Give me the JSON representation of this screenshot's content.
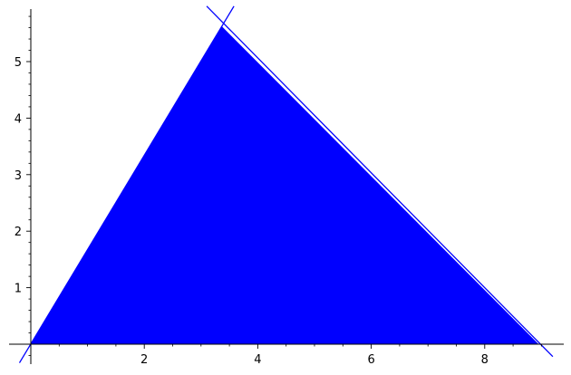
{
  "chart_data": {
    "type": "area",
    "title": "",
    "xlabel": "",
    "ylabel": "",
    "xlim": [
      0,
      9.4
    ],
    "ylim": [
      -0.45,
      5.9
    ],
    "grid": false,
    "x_major_ticks": [
      2,
      4,
      6,
      8
    ],
    "x_tick_labels": [
      "2",
      "4",
      "6",
      "8"
    ],
    "y_major_ticks": [
      1,
      2,
      3,
      4,
      5
    ],
    "y_tick_labels": [
      "1",
      "2",
      "3",
      "4",
      "5"
    ],
    "x_minor_step": 0.5,
    "y_minor_step": 0.2,
    "filled_region": {
      "vertices": [
        [
          0,
          0
        ],
        [
          3.37,
          5.62
        ],
        [
          8.95,
          0
        ]
      ],
      "color": "#0000ff"
    },
    "lines": [
      {
        "from": [
          -0.2,
          -0.33
        ],
        "to": [
          3.58,
          5.98
        ],
        "color": "#0000ff"
      },
      {
        "from": [
          3.1,
          5.98
        ],
        "to": [
          9.2,
          -0.22
        ],
        "color": "#0000ff"
      }
    ],
    "colors": {
      "fill": "#0000ff",
      "line": "#0000ff",
      "axis": "#000000"
    }
  }
}
